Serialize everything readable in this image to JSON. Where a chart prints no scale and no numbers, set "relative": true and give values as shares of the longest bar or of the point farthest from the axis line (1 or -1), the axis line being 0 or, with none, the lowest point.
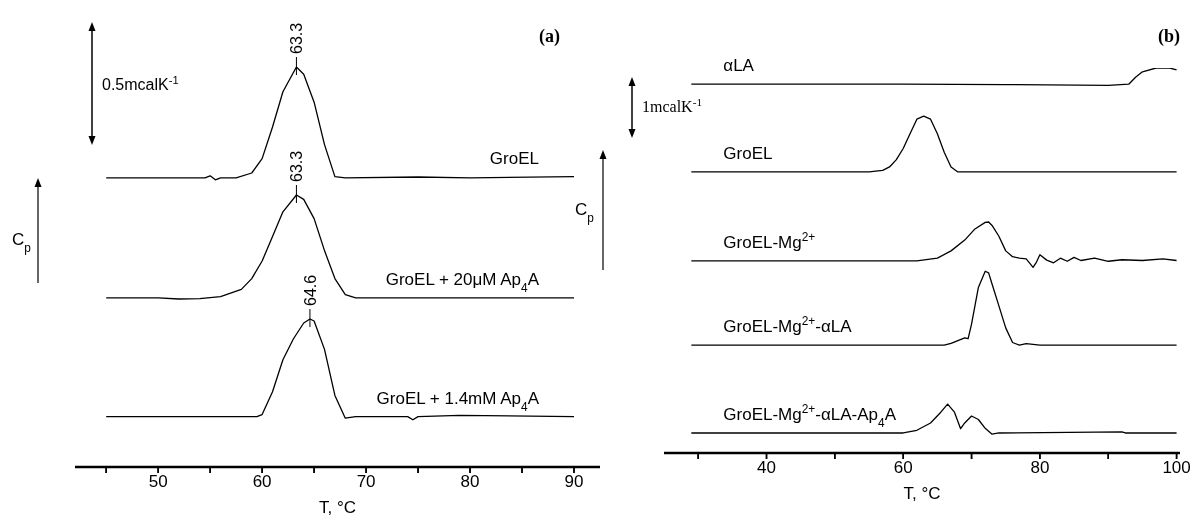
{
  "chart_data": [
    {
      "type": "line",
      "title": "(a)",
      "xlabel": "T, °C",
      "ylabel": "C$_{p}$",
      "relative": true,
      "xlim": [
        42,
        92.5
      ],
      "xticks": [
        {
          "value": 45,
          "label": null
        },
        50,
        {
          "value": 55,
          "label": null
        },
        60,
        {
          "value": 65,
          "label": null
        },
        70,
        {
          "value": 75,
          "label": null
        },
        80,
        {
          "value": 85,
          "label": null
        },
        90
      ],
      "series": [
        {
          "name": "GroEL",
          "color": "#000000",
          "x": [
            45,
            50,
            54.5,
            55,
            55.5,
            56,
            57.5,
            59,
            60,
            61,
            62,
            63.3,
            64,
            65,
            66,
            67,
            68,
            75,
            80,
            90
          ],
          "values": [
            0.723,
            0.723,
            0.723,
            0.728,
            0.718,
            0.723,
            0.723,
            0.735,
            0.771,
            0.85,
            0.938,
            1.0,
            0.982,
            0.912,
            0.806,
            0.726,
            0.723,
            0.725,
            0.723,
            0.726
          ]
        },
        {
          "name": "GroEL + 20μM Ap$_{4}$A",
          "color": "#000000",
          "x": [
            45,
            50,
            52,
            54,
            56,
            58,
            59,
            60,
            61,
            62,
            63.3,
            64,
            65,
            66,
            67,
            68,
            69,
            80,
            90
          ],
          "values": [
            0.423,
            0.423,
            0.42,
            0.421,
            0.426,
            0.444,
            0.471,
            0.515,
            0.576,
            0.638,
            0.68,
            0.669,
            0.621,
            0.541,
            0.471,
            0.431,
            0.423,
            0.423,
            0.423
          ]
        },
        {
          "name": "GroEL + 1.4mM Ap$_{4}$A",
          "color": "#000000",
          "x": [
            45,
            55,
            59.5,
            60,
            61,
            62,
            63,
            64,
            64.6,
            65,
            66,
            67,
            68,
            69,
            74,
            74.5,
            75,
            79,
            90
          ],
          "values": [
            0.126,
            0.126,
            0.126,
            0.131,
            0.188,
            0.268,
            0.32,
            0.36,
            0.37,
            0.365,
            0.294,
            0.179,
            0.122,
            0.126,
            0.126,
            0.118,
            0.126,
            0.129,
            0.126
          ]
        }
      ],
      "annotations": [
        "0.5mcalK$^{-1}$",
        "63.3",
        "63.3",
        "64.6"
      ]
    },
    {
      "type": "line",
      "title": "(b)",
      "xlabel": "T, °C",
      "ylabel": "C$_{p}$",
      "relative": true,
      "xlim": [
        25,
        100.5
      ],
      "xticks": [
        {
          "value": 30,
          "label": null
        },
        40,
        {
          "value": 50,
          "label": null
        },
        60,
        {
          "value": 70,
          "label": null
        },
        80,
        {
          "value": 90,
          "label": null
        },
        100
      ],
      "series": [
        {
          "name": "αLA",
          "color": "#000000",
          "x": [
            29,
            45,
            60,
            75,
            90,
            93,
            94,
            95,
            97,
            99,
            100
          ],
          "values": [
            0.958,
            0.958,
            0.958,
            0.957,
            0.955,
            0.958,
            0.976,
            0.99,
            1.0,
            1.0,
            0.995
          ]
        },
        {
          "name": "GroEL",
          "color": "#000000",
          "x": [
            29,
            45,
            55,
            57,
            58,
            59,
            60,
            61,
            62,
            63,
            64,
            65,
            66,
            67,
            68,
            80,
            100
          ],
          "values": [
            0.73,
            0.73,
            0.73,
            0.734,
            0.743,
            0.762,
            0.791,
            0.829,
            0.867,
            0.875,
            0.867,
            0.829,
            0.781,
            0.743,
            0.73,
            0.73,
            0.73
          ]
        },
        {
          "name": "GroEL-Mg$^{2+}$",
          "color": "#000000",
          "x": [
            29,
            45,
            62,
            65,
            67,
            69,
            70.5,
            72,
            72.5,
            73,
            74,
            75,
            76,
            77,
            78,
            79,
            79.5,
            80,
            81,
            82,
            83,
            84,
            85,
            86,
            88,
            90,
            92,
            95,
            98,
            100
          ],
          "values": [
            0.499,
            0.499,
            0.499,
            0.506,
            0.525,
            0.553,
            0.582,
            0.599,
            0.6,
            0.591,
            0.563,
            0.525,
            0.51,
            0.506,
            0.504,
            0.482,
            0.496,
            0.515,
            0.501,
            0.494,
            0.506,
            0.498,
            0.508,
            0.5,
            0.506,
            0.498,
            0.502,
            0.5,
            0.504,
            0.5
          ]
        },
        {
          "name": "GroEL-Mg$^{2+}$-αLA",
          "color": "#000000",
          "x": [
            29,
            45,
            66,
            67,
            68,
            69,
            69.5,
            70,
            71,
            72,
            72.5,
            73,
            74,
            75,
            76,
            77,
            78,
            80,
            100
          ],
          "values": [
            0.28,
            0.28,
            0.28,
            0.285,
            0.292,
            0.299,
            0.297,
            0.335,
            0.43,
            0.472,
            0.468,
            0.439,
            0.382,
            0.325,
            0.287,
            0.28,
            0.284,
            0.28,
            0.28
          ]
        },
        {
          "name": "GroEL-Mg$^{2+}$-αLA-Ap$_{4}$A",
          "color": "#000000",
          "x": [
            29,
            45,
            60,
            62,
            64,
            65.5,
            66.5,
            67.5,
            68.4,
            69,
            70,
            71,
            72,
            73,
            74,
            92,
            92.5,
            100
          ],
          "values": [
            0.052,
            0.052,
            0.052,
            0.059,
            0.078,
            0.106,
            0.127,
            0.106,
            0.063,
            0.078,
            0.096,
            0.087,
            0.064,
            0.049,
            0.052,
            0.055,
            0.052,
            0.052
          ]
        }
      ],
      "annotations": [
        "1mcalK$^{-1}$"
      ]
    }
  ]
}
